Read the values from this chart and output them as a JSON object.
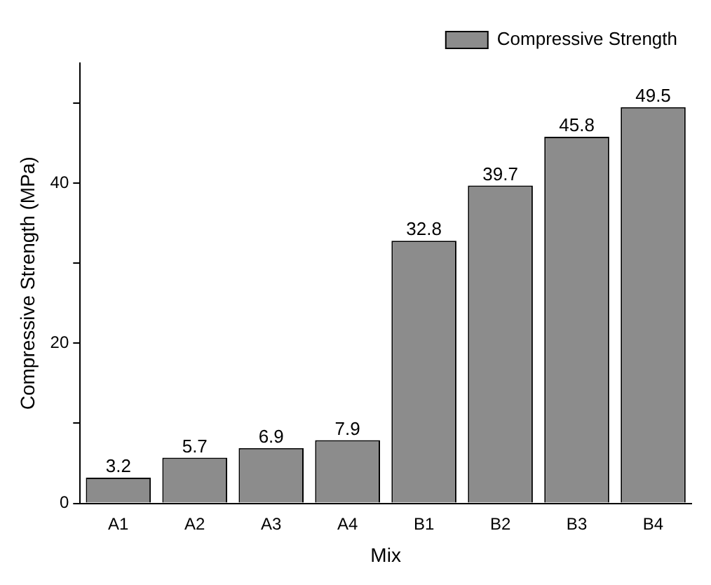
{
  "chart_data": {
    "type": "bar",
    "xlabel": "Mix",
    "ylabel": "Compressive Strength (MPa)",
    "categories": [
      "A1",
      "A2",
      "A3",
      "A4",
      "B1",
      "B2",
      "B3",
      "B4"
    ],
    "series": [
      {
        "name": "Compressive Strength",
        "color": "#8c8c8c",
        "values": [
          3.2,
          5.7,
          6.9,
          7.9,
          32.8,
          39.7,
          45.8,
          49.5
        ]
      }
    ],
    "ylim": [
      0,
      55
    ],
    "yticks": [
      0,
      {
        "value": 10,
        "label": null
      },
      20,
      {
        "value": 30,
        "label": null
      },
      40,
      {
        "value": 50,
        "label": null
      }
    ],
    "data_labels": true,
    "grid": false,
    "legend": "top right"
  }
}
